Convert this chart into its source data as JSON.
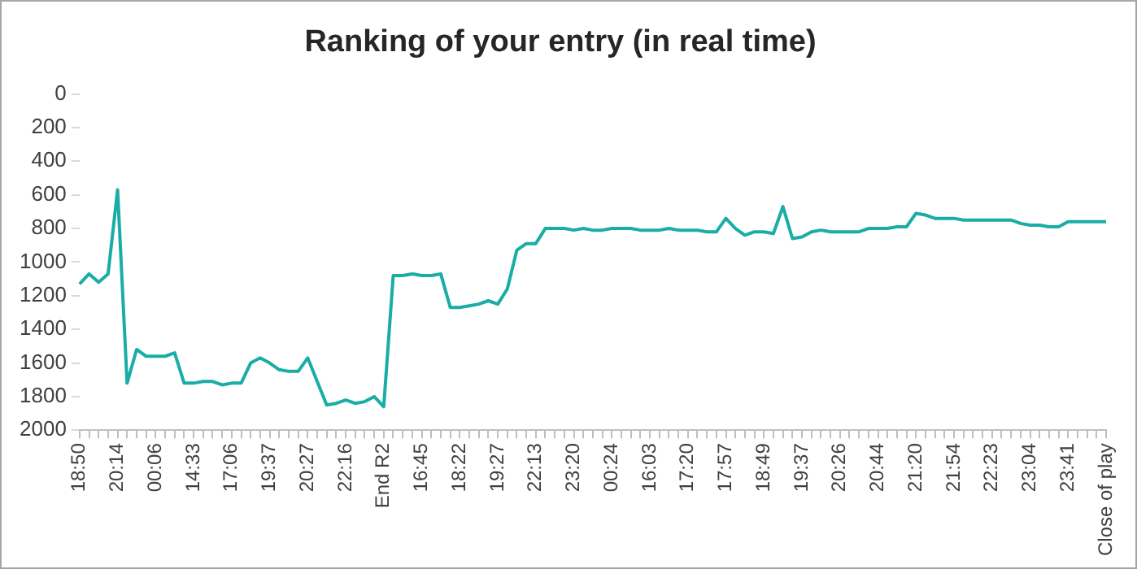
{
  "chart_data": {
    "type": "line",
    "title": "Ranking of your entry (in real time)",
    "categories": [
      "18:50",
      null,
      null,
      null,
      "20:14",
      null,
      null,
      null,
      "00:06",
      null,
      null,
      null,
      "14:33",
      null,
      null,
      null,
      "17:06",
      null,
      null,
      null,
      "19:37",
      null,
      null,
      null,
      "20:27",
      null,
      null,
      null,
      "22:16",
      null,
      null,
      null,
      "End R2",
      null,
      null,
      null,
      "16:45",
      null,
      null,
      null,
      "18:22",
      null,
      null,
      null,
      "19:27",
      null,
      null,
      null,
      "22:13",
      null,
      null,
      null,
      "23:20",
      null,
      null,
      null,
      "00:24",
      null,
      null,
      null,
      "16:03",
      null,
      null,
      null,
      "17:20",
      null,
      null,
      null,
      "17:57",
      null,
      null,
      null,
      "18:49",
      null,
      null,
      null,
      "19:37",
      null,
      null,
      null,
      "20:26",
      null,
      null,
      null,
      "20:44",
      null,
      null,
      null,
      "21:20",
      null,
      null,
      null,
      "21:54",
      null,
      null,
      null,
      "22:23",
      null,
      null,
      null,
      "23:04",
      null,
      null,
      null,
      "23:41",
      null,
      null,
      null,
      "Close of play"
    ],
    "series": [
      {
        "color": "#1aada6",
        "values": [
          1130,
          1070,
          1120,
          1070,
          570,
          1720,
          1520,
          1560,
          1560,
          1560,
          1540,
          1720,
          1720,
          1710,
          1710,
          1730,
          1720,
          1720,
          1600,
          1570,
          1600,
          1640,
          1650,
          1650,
          1570,
          1710,
          1850,
          1840,
          1820,
          1840,
          1830,
          1800,
          1860,
          1080,
          1080,
          1070,
          1080,
          1080,
          1070,
          1270,
          1270,
          1260,
          1250,
          1230,
          1250,
          1160,
          930,
          890,
          890,
          800,
          800,
          800,
          810,
          800,
          810,
          810,
          800,
          800,
          800,
          810,
          810,
          810,
          800,
          810,
          810,
          810,
          820,
          820,
          740,
          800,
          840,
          820,
          820,
          830,
          670,
          860,
          850,
          820,
          810,
          820,
          820,
          820,
          820,
          800,
          800,
          800,
          790,
          790,
          710,
          720,
          740,
          740,
          740,
          750,
          750,
          750,
          750,
          750,
          750,
          770,
          780,
          780,
          790,
          790,
          760,
          760,
          760,
          760,
          760
        ]
      }
    ],
    "ylim": [
      2000,
      0
    ],
    "yticks": [
      0,
      200,
      400,
      600,
      800,
      1000,
      1200,
      1400,
      1600,
      1800,
      2000
    ],
    "grid": false,
    "legend": false,
    "marker": "none",
    "line_style": "solid"
  }
}
